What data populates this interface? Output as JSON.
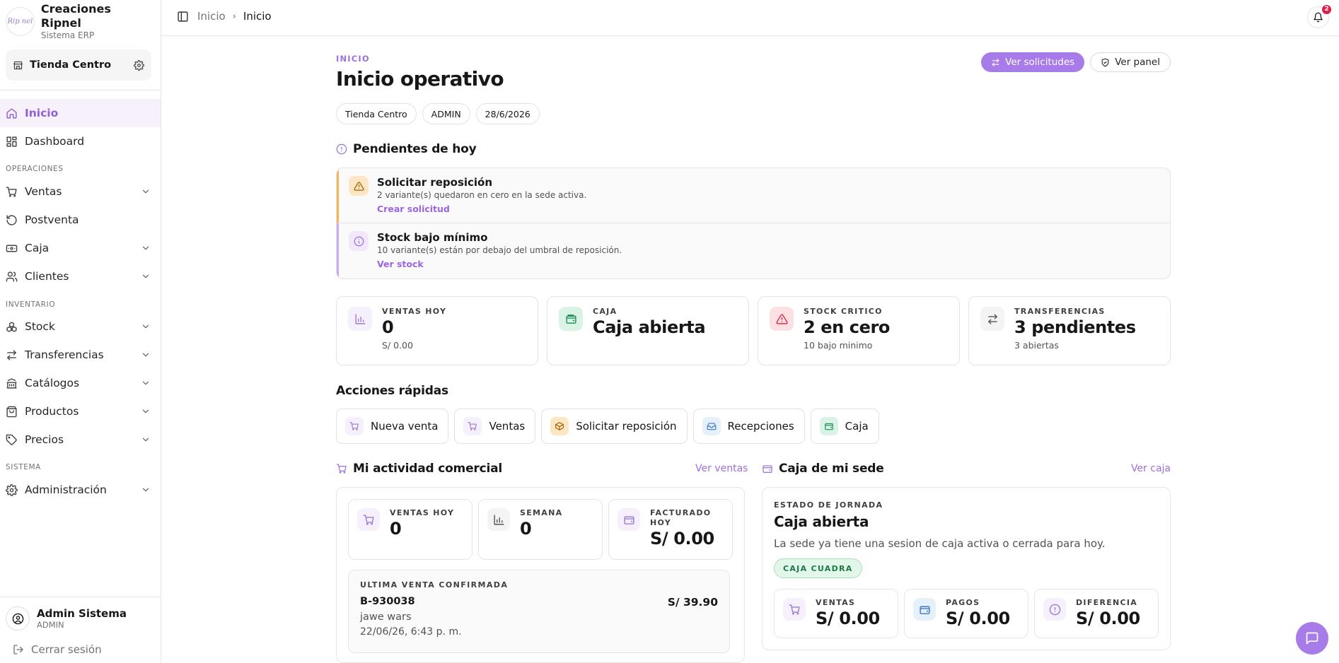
{
  "brand": {
    "logo_text": "Rip nel",
    "name": "Creaciones Ripnel",
    "subtitle": "Sistema ERP"
  },
  "store": {
    "name": "Tienda Centro"
  },
  "sidebar": {
    "nav": [
      {
        "label": "Inicio",
        "icon": "home-icon",
        "active": true
      },
      {
        "label": "Dashboard",
        "icon": "grid-icon"
      },
      {
        "label": "Ventas",
        "icon": "cart-icon",
        "expandable": true
      },
      {
        "label": "Postventa",
        "icon": "rotate-icon"
      },
      {
        "label": "Caja",
        "icon": "cash-icon",
        "expandable": true
      },
      {
        "label": "Clientes",
        "icon": "users-icon",
        "expandable": true
      },
      {
        "label": "Stock",
        "icon": "boxes-icon",
        "expandable": true
      },
      {
        "label": "Transferencias",
        "icon": "arrows-icon",
        "expandable": true
      },
      {
        "label": "Catálogos",
        "icon": "library-icon",
        "expandable": true
      },
      {
        "label": "Productos",
        "icon": "package-icon",
        "expandable": true
      },
      {
        "label": "Precios",
        "icon": "tag-icon",
        "expandable": true
      },
      {
        "label": "Administración",
        "icon": "gear-icon",
        "expandable": true
      }
    ],
    "sections": {
      "operaciones": "OPERACIONES",
      "inventario": "INVENTARIO",
      "sistema": "SISTEMA"
    }
  },
  "user": {
    "name": "Admin Sistema",
    "role": "ADMIN",
    "logout": "Cerrar sesión"
  },
  "breadcrumb": {
    "first": "Inicio",
    "current": "Inicio"
  },
  "notifications": {
    "count": "2"
  },
  "header": {
    "eyebrow": "INICIO",
    "title": "Inicio operativo",
    "btn_requests": "Ver solicitudes",
    "btn_panel": "Ver panel",
    "chips": [
      "Tienda Centro",
      "ADMIN",
      "28/6/2026"
    ]
  },
  "pending": {
    "title": "Pendientes de hoy",
    "items": [
      {
        "title": "Solicitar reposición",
        "desc": "2 variante(s) quedaron en cero en la sede activa.",
        "action": "Crear solicitud"
      },
      {
        "title": "Stock bajo mínimo",
        "desc": "10 variante(s) están por debajo del umbral de reposición.",
        "action": "Ver stock"
      }
    ]
  },
  "kpis": [
    {
      "label": "VENTAS HOY",
      "value": "0",
      "sub": "S/ 0.00"
    },
    {
      "label": "CAJA",
      "value": "Caja abierta",
      "sub": ""
    },
    {
      "label": "STOCK CRITICO",
      "value": "2 en cero",
      "sub": "10 bajo minimo"
    },
    {
      "label": "TRANSFERENCIAS",
      "value": "3 pendientes",
      "sub": "3 abiertas"
    }
  ],
  "quick_actions": {
    "title": "Acciones rápidas",
    "items": [
      "Nueva venta",
      "Ventas",
      "Solicitar reposición",
      "Recepciones",
      "Caja"
    ]
  },
  "activity": {
    "title": "Mi actividad comercial",
    "link": "Ver ventas",
    "stats": [
      {
        "label": "VENTAS HOY",
        "value": "0"
      },
      {
        "label": "SEMANA",
        "value": "0"
      },
      {
        "label_1": "FACTURADO",
        "label_2": "HOY",
        "value": "S/ 0.00"
      }
    ],
    "last_sale": {
      "label": "ULTIMA VENTA CONFIRMADA",
      "code": "B-930038",
      "amount": "S/ 39.90",
      "client": "jawe wars",
      "date": "22/06/26, 6:43 p. m."
    }
  },
  "cashbox": {
    "title": "Caja de mi sede",
    "link": "Ver caja",
    "state_label": "ESTADO DE JORNADA",
    "state": "Caja abierta",
    "desc": "La sede ya tiene una sesion de caja activa o cerrada para hoy.",
    "pill": "CAJA CUADRA",
    "stats": [
      {
        "label": "VENTAS",
        "value": "S/ 0.00"
      },
      {
        "label": "PAGOS",
        "value": "S/ 0.00"
      },
      {
        "label": "DIFERENCIA",
        "value": "S/ 0.00"
      }
    ]
  },
  "colors": {
    "accent": "#a77ce8",
    "warning": "#f5b35a",
    "success": "#1d7a44",
    "danger": "#e11d48"
  }
}
